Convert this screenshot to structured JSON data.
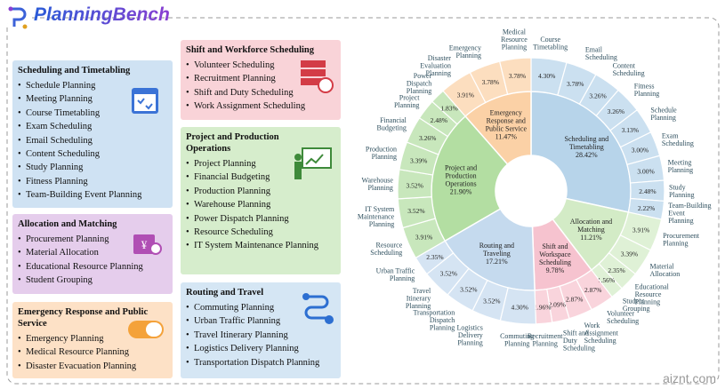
{
  "logo": "PlanningBench",
  "watermark": "aiznt.com",
  "panels": [
    {
      "title": "Scheduling and Timetabling",
      "color": "#cfe2f3",
      "items": [
        "Schedule Planning",
        "Meeting Planning",
        "Course Timetabling",
        "Exam Scheduling",
        "Email Scheduling",
        "Content Scheduling",
        "Study Planning",
        "Fitness Planning",
        "Team-Building Event Planning"
      ]
    },
    {
      "title": "Allocation and Matching",
      "color": "#e5cdec",
      "items": [
        "Procurement Planning",
        "Material Allocation",
        "Educational Resource Planning",
        "Student Grouping"
      ]
    },
    {
      "title": "Emergency Response and Public Service",
      "color": "#fde1c6",
      "items": [
        "Emergency Planning",
        "Medical Resource Planning",
        "Disaster Evacuation Planning"
      ]
    },
    {
      "title": "Shift and Workforce Scheduling",
      "color": "#f9d3d8",
      "items": [
        "Volunteer Scheduling",
        "Recruitment Planning",
        "Shift and Duty Scheduling",
        "Work Assignment Scheduling"
      ]
    },
    {
      "title": "Project and Production Operations",
      "color": "#d6edcc",
      "items": [
        "Project Planning",
        "Financial Budgeting",
        "Production Planning",
        "Warehouse Planning",
        "Power Dispatch Planning",
        "Resource Scheduling",
        "IT System Maintenance Planning"
      ]
    },
    {
      "title": "Routing and Travel",
      "color": "#d5e6f4",
      "items": [
        "Commuting Planning",
        "Urban Traffic Planning",
        "Travel Itinerary Planning",
        "Logistics Delivery Planning",
        "Transportation Dispatch Planning"
      ]
    }
  ],
  "chart_data": {
    "type": "sunburst",
    "categories": [
      "Scheduling and Timetabling",
      "Allocation and Matching",
      "Shift and Workspace Scheduling",
      "Routing and Traveling",
      "Project and Production Operations",
      "Emergency Response and Public Service"
    ],
    "values": [
      28.42,
      11.21,
      9.78,
      17.21,
      21.9,
      11.47
    ],
    "value_labels": [
      "28.42%",
      "11.21%",
      "9.78%",
      "17.21%",
      "21.90%",
      "11.47%"
    ],
    "colors": [
      "#b7d4ea",
      "#d3ebc6",
      "#f6c3cf",
      "#c5daee",
      "#b3dea2",
      "#fbd1a6"
    ],
    "children": [
      {
        "labels": [
          "Course Timetabling",
          "Email Scheduling",
          "Content Scheduling",
          "Fitness Planning",
          "Schedule Planning",
          "Exam Scheduling",
          "Meeting Planning",
          "Study Planning",
          "Team-Building Event Planning"
        ],
        "values": [
          4.3,
          3.78,
          3.26,
          3.26,
          3.13,
          3.0,
          3.0,
          2.48,
          2.22
        ],
        "value_labels": [
          "4.30%",
          "3.78%",
          "3.26%",
          "3.26%",
          "3.13%",
          "3.00%",
          "3.00%",
          "2.48%",
          "2.22%"
        ]
      },
      {
        "labels": [
          "Procurement Planning",
          "Material Allocation",
          "Educational Resource Planning",
          "Student Grouping"
        ],
        "values": [
          3.91,
          3.39,
          2.35,
          1.56
        ],
        "value_labels": [
          "3.91%",
          "3.39%",
          "2.35%",
          "1.56%"
        ]
      },
      {
        "labels": [
          "Volunteer Scheduling",
          "Work Assignment Scheduling",
          "Shift and Duty Scheduling",
          "Recruitment Planning"
        ],
        "values": [
          2.87,
          2.87,
          2.09,
          1.96
        ],
        "value_labels": [
          "2.87%",
          "2.87%",
          "2.09%",
          "1.96%"
        ]
      },
      {
        "labels": [
          "Commuting Planning",
          "Logistics Delivery Planning",
          "Transportation Dispatch Planning",
          "Travel Itinerary Planning",
          "Urban Traffic Planning"
        ],
        "values": [
          4.3,
          3.52,
          3.52,
          3.52,
          2.35
        ],
        "value_labels": [
          "4.30%",
          "3.52%",
          "3.52%",
          "3.52%",
          "2.35%"
        ]
      },
      {
        "labels": [
          "Resource Scheduling",
          "IT System Maintenance Planning",
          "Warehouse Planning",
          "Production Planning",
          "Financial Budgeting",
          "Project Planning",
          "Power Dispatch Planning"
        ],
        "values": [
          3.91,
          3.52,
          3.52,
          3.39,
          3.26,
          2.48,
          1.83
        ],
        "value_labels": [
          "3.91%",
          "3.52%",
          "3.52%",
          "3.39%",
          "3.26%",
          "2.48%",
          "1.83%"
        ]
      },
      {
        "labels": [
          "Disaster Evaluation Planning",
          "Emergency Planning",
          "Medical Resource Planning"
        ],
        "values": [
          3.91,
          3.78,
          3.78
        ],
        "value_labels": [
          "3.91%",
          "3.78%",
          "3.78%"
        ]
      }
    ]
  }
}
